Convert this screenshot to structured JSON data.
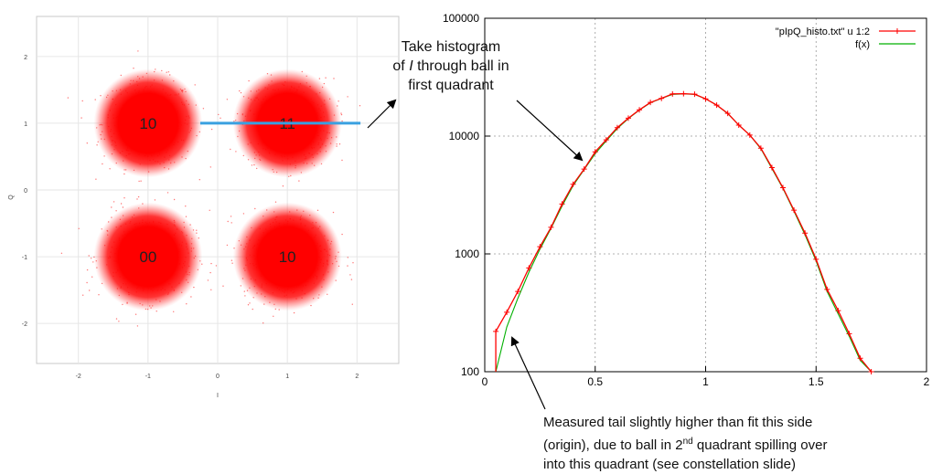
{
  "chart_data": [
    {
      "type": "scatter",
      "xlabel": "I",
      "ylabel": "Q",
      "xlim": [
        -2.6,
        2.6
      ],
      "ylim": [
        -2.6,
        2.6
      ],
      "x_ticks": [
        "-2",
        "-1",
        "0",
        "1",
        "2"
      ],
      "y_ticks": [
        "2",
        "1",
        "0",
        "-1",
        "-2"
      ],
      "grid": true,
      "clusters": [
        {
          "label": "10",
          "x": -1,
          "y": 1
        },
        {
          "label": "11",
          "x": 1,
          "y": 1
        },
        {
          "label": "00",
          "x": -1,
          "y": -1
        },
        {
          "label": "10",
          "x": 1,
          "y": -1
        }
      ],
      "highlight_line": {
        "x1": -0.25,
        "x2": 2.05,
        "y": 1,
        "color": "#3aa0e0"
      },
      "point_color": "#ff0000"
    },
    {
      "type": "line",
      "y_scale": "log",
      "xlim": [
        0,
        2
      ],
      "ylim": [
        100,
        100000
      ],
      "x_ticks": [
        "0",
        "0.5",
        "1",
        "1.5",
        "2"
      ],
      "y_ticks": [
        "100",
        "1000",
        "10000",
        "100000"
      ],
      "grid": true,
      "legend_position": "top-right",
      "series": [
        {
          "name": "\"pIpQ_histo.txt\" u 1:2",
          "color": "#ff0000",
          "marker": "+",
          "x": [
            0.05,
            0.1,
            0.15,
            0.2,
            0.25,
            0.3,
            0.35,
            0.4,
            0.45,
            0.5,
            0.55,
            0.6,
            0.65,
            0.7,
            0.75,
            0.8,
            0.85,
            0.9,
            0.95,
            1.0,
            1.05,
            1.1,
            1.15,
            1.2,
            1.25,
            1.3,
            1.35,
            1.4,
            1.45,
            1.5,
            1.55,
            1.6,
            1.65,
            1.7,
            1.75
          ],
          "y": [
            220,
            320,
            480,
            760,
            1150,
            1680,
            2650,
            3900,
            5250,
            7350,
            9300,
            11800,
            14200,
            16700,
            19300,
            20900,
            22800,
            22900,
            22700,
            20700,
            18300,
            15600,
            12400,
            10200,
            7900,
            5400,
            3650,
            2350,
            1500,
            900,
            500,
            330,
            210,
            130,
            100
          ]
        },
        {
          "name": "f(x)",
          "color": "#00b000",
          "marker": "none",
          "x": [
            0.05,
            0.1,
            0.15,
            0.2,
            0.25,
            0.3,
            0.35,
            0.4,
            0.45,
            0.5,
            0.55,
            0.6,
            0.65,
            0.7,
            0.75,
            0.8,
            0.85,
            0.9,
            0.95,
            1.0,
            1.05,
            1.1,
            1.15,
            1.2,
            1.25,
            1.3,
            1.35,
            1.4,
            1.45,
            1.5,
            1.55,
            1.6,
            1.65,
            1.7,
            1.75
          ],
          "y": [
            100,
            240,
            420,
            700,
            1100,
            1650,
            2550,
            3800,
            5200,
            7100,
            9100,
            11600,
            14100,
            16600,
            19200,
            20900,
            22600,
            22800,
            22600,
            20700,
            18300,
            15500,
            12400,
            10200,
            7800,
            5300,
            3600,
            2300,
            1450,
            870,
            480,
            310,
            200,
            125,
            95
          ]
        }
      ]
    }
  ],
  "annotations": {
    "histogram_line1": "Take histogram",
    "histogram_line2_a": "of ",
    "histogram_line2_italic": "I",
    "histogram_line2_b": " through ball in",
    "histogram_line3": "first quadrant",
    "tail_line1": "Measured tail slightly higher than fit this side",
    "tail_line2_a": "(origin), due to ball in 2",
    "tail_line2_sup": "nd",
    "tail_line2_b": " quadrant spilling over",
    "tail_line3": "into this quadrant (see constellation slide)"
  }
}
